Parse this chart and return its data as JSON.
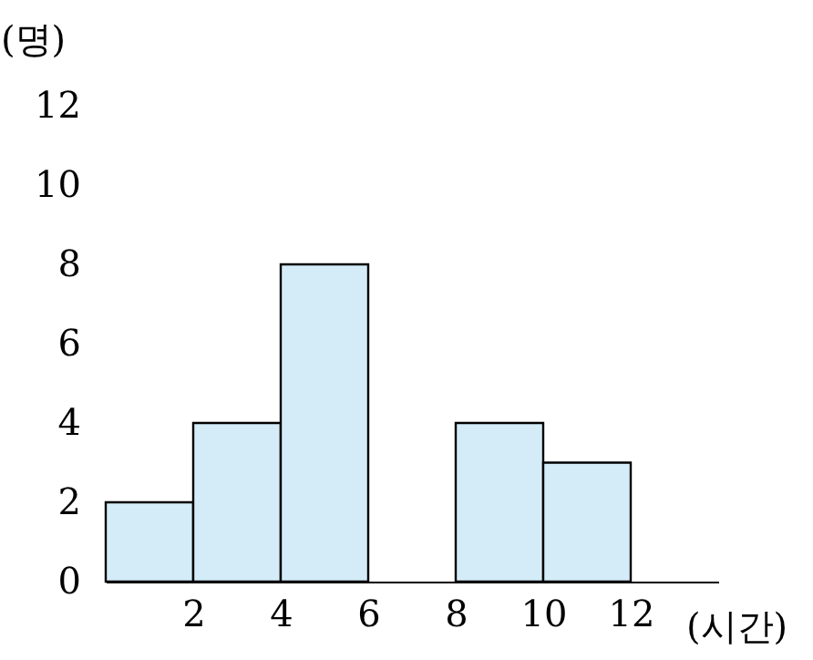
{
  "chart_data": {
    "type": "histogram",
    "xlabel": "(시간)",
    "ylabel": "(명)",
    "bins": [
      0,
      2,
      4,
      6,
      8,
      10,
      12
    ],
    "values": [
      2,
      4,
      8,
      null,
      4,
      3
    ],
    "color": "#d4ecf8",
    "xlim": [
      0,
      14
    ],
    "xticks": [
      2,
      4,
      6,
      8,
      10,
      12
    ],
    "ylim": [
      0,
      12
    ],
    "yticks": [
      0,
      2,
      4,
      6,
      8,
      10,
      12
    ],
    "grid": false
  }
}
